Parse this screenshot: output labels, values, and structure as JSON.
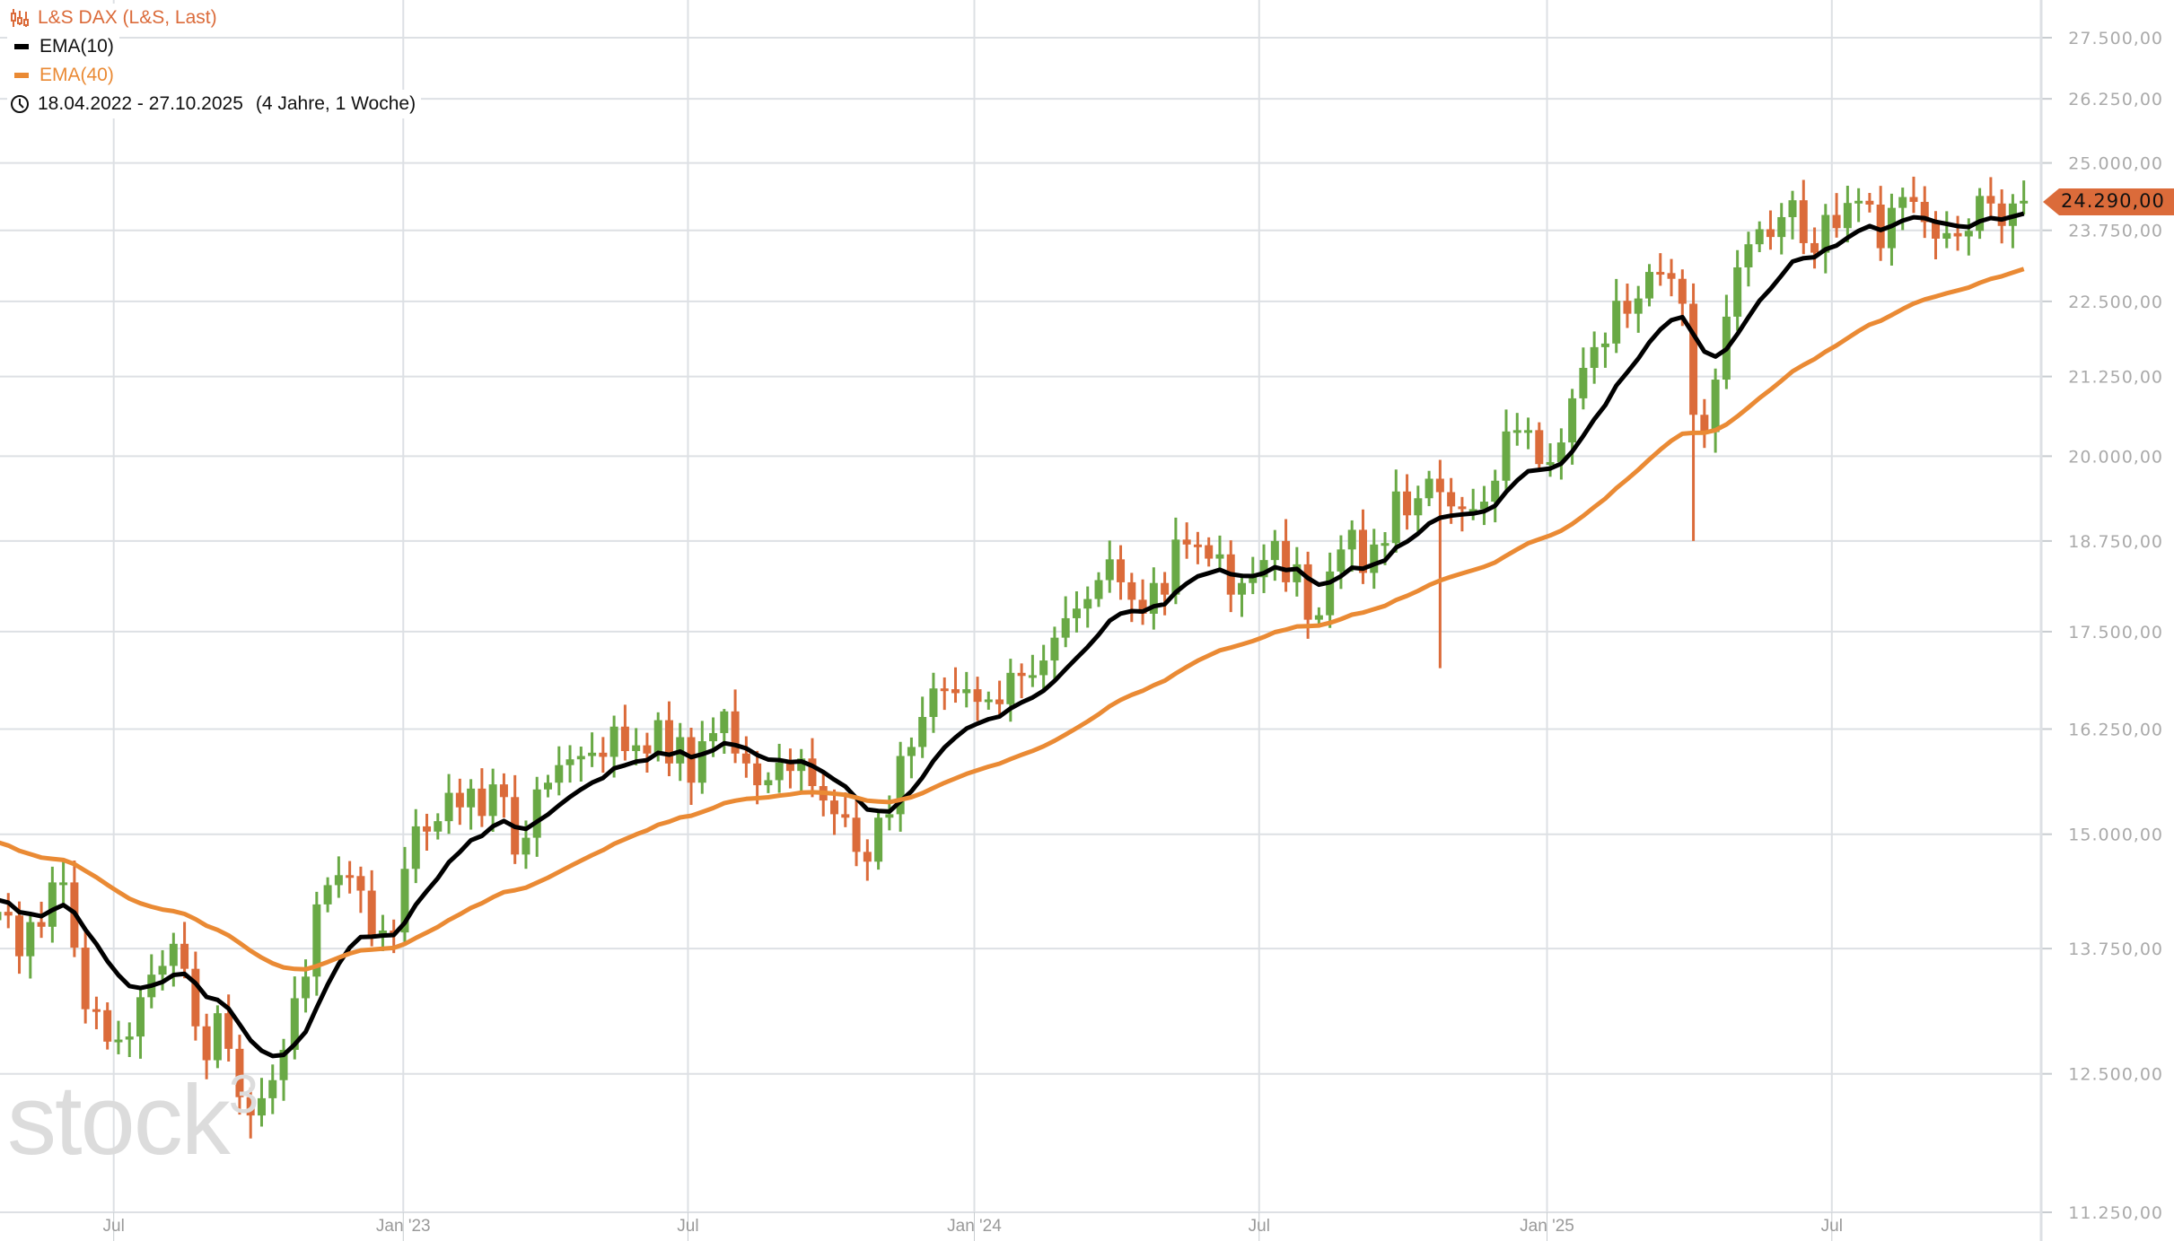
{
  "legend": {
    "instrument": "L&S DAX (L&S, Last)",
    "ema10": "EMA(10)",
    "ema40": "EMA(40)",
    "range": "18.04.2022 - 27.10.2025",
    "range_duration": "(4 Jahre, 1 Woche)"
  },
  "watermark": "stock3",
  "last_price_label": "24.290,00",
  "colors": {
    "up": "#69a945",
    "down": "#db6b3a",
    "ema10": "#000000",
    "ema40": "#ea8a34",
    "grid": "#dde0e4",
    "accent": "#db6b3a"
  },
  "chart_data": {
    "type": "candlestick",
    "title": "L&S DAX (L&S, Last)",
    "interval": "weekly",
    "y_scale": "log",
    "ylim": [
      11250,
      27500
    ],
    "y_ticks": [
      {
        "value": 27500,
        "label": "27.500,00"
      },
      {
        "value": 26250,
        "label": "26.250,00"
      },
      {
        "value": 25000,
        "label": "25.000,00"
      },
      {
        "value": 23750,
        "label": "23.750,00"
      },
      {
        "value": 22500,
        "label": "22.500,00"
      },
      {
        "value": 21250,
        "label": "21.250,00"
      },
      {
        "value": 20000,
        "label": "20.000,00"
      },
      {
        "value": 18750,
        "label": "18.750,00"
      },
      {
        "value": 17500,
        "label": "17.500,00"
      },
      {
        "value": 16250,
        "label": "16.250,00"
      },
      {
        "value": 15000,
        "label": "15.000,00"
      },
      {
        "value": 13750,
        "label": "13.750,00"
      },
      {
        "value": 12500,
        "label": "12.500,00"
      },
      {
        "value": 11250,
        "label": "11.250,00"
      }
    ],
    "x_ticks": [
      {
        "week": 10.57,
        "label": "Jul"
      },
      {
        "week": 36.86,
        "label": "Jan '23"
      },
      {
        "week": 62.71,
        "label": "Jul"
      },
      {
        "week": 88.71,
        "label": "Jan '24"
      },
      {
        "week": 114.57,
        "label": "Jul"
      },
      {
        "week": 140.71,
        "label": "Jan '25"
      },
      {
        "week": 166.57,
        "label": "Jul"
      }
    ],
    "first_open": 14050,
    "close": [
      14140,
      14100,
      13670,
      14030,
      13980,
      14460,
      14460,
      13760,
      13130,
      13120,
      12810,
      12830,
      12860,
      13250,
      13480,
      13570,
      13800,
      13540,
      12960,
      12630,
      13090,
      12740,
      12280,
      12110,
      12270,
      12440,
      12730,
      13240,
      13460,
      14220,
      14430,
      14540,
      14530,
      14370,
      13890,
      13940,
      13920,
      14610,
      15090,
      15030,
      15150,
      15480,
      15310,
      15530,
      15210,
      15580,
      15430,
      14770,
      14960,
      15520,
      15600,
      15810,
      15880,
      15920,
      15960,
      15910,
      16280,
      15980,
      16050,
      15950,
      16360,
      15830,
      16150,
      15600,
      16100,
      16200,
      16470,
      15950,
      15830,
      15570,
      15630,
      15840,
      15740,
      15890,
      15560,
      15390,
      15230,
      15190,
      14800,
      14690,
      15190,
      15230,
      15920,
      16030,
      16400,
      16760,
      16750,
      16700,
      16750,
      16590,
      16620,
      16560,
      16960,
      16920,
      16930,
      17120,
      17420,
      17680,
      17810,
      17940,
      18200,
      18490,
      18170,
      17930,
      17740,
      18160,
      18000,
      18770,
      18700,
      18690,
      18500,
      18560,
      18000,
      18160,
      18240,
      18480,
      18750,
      18170,
      18420,
      17660,
      17720,
      18320,
      18630,
      18910,
      18300,
      18700,
      18720,
      19470,
      19120,
      19370,
      19660,
      19460,
      19250,
      19210,
      19210,
      19320,
      19630,
      20380,
      20400,
      20400,
      19880,
      19910,
      20210,
      20900,
      21390,
      21730,
      21790,
      22510,
      22290,
      22550,
      23010,
      22990,
      22890,
      22460,
      20640,
      20370,
      21200,
      22240,
      23090,
      23500,
      23770,
      23630,
      23990,
      24300,
      23520,
      23350,
      24030,
      23790,
      24250,
      24290,
      24220,
      23430,
      24160,
      24360,
      24270,
      23900,
      23600,
      23700,
      23640,
      23740,
      24380,
      24240,
      23830,
      24240,
      24290
    ],
    "wick_pct": 1.2,
    "low_overrides": {
      "23": 11900,
      "131": 17020,
      "154": 18750
    },
    "high_overrides": {
      "6": 14700,
      "66": 16500
    },
    "series": [
      {
        "name": "EMA(10)",
        "period": 10,
        "seed": 14300
      },
      {
        "name": "EMA(40)",
        "period": 40,
        "seed": 14950
      }
    ],
    "last_price": 24290,
    "grid": true,
    "legend_position": "top-left"
  }
}
